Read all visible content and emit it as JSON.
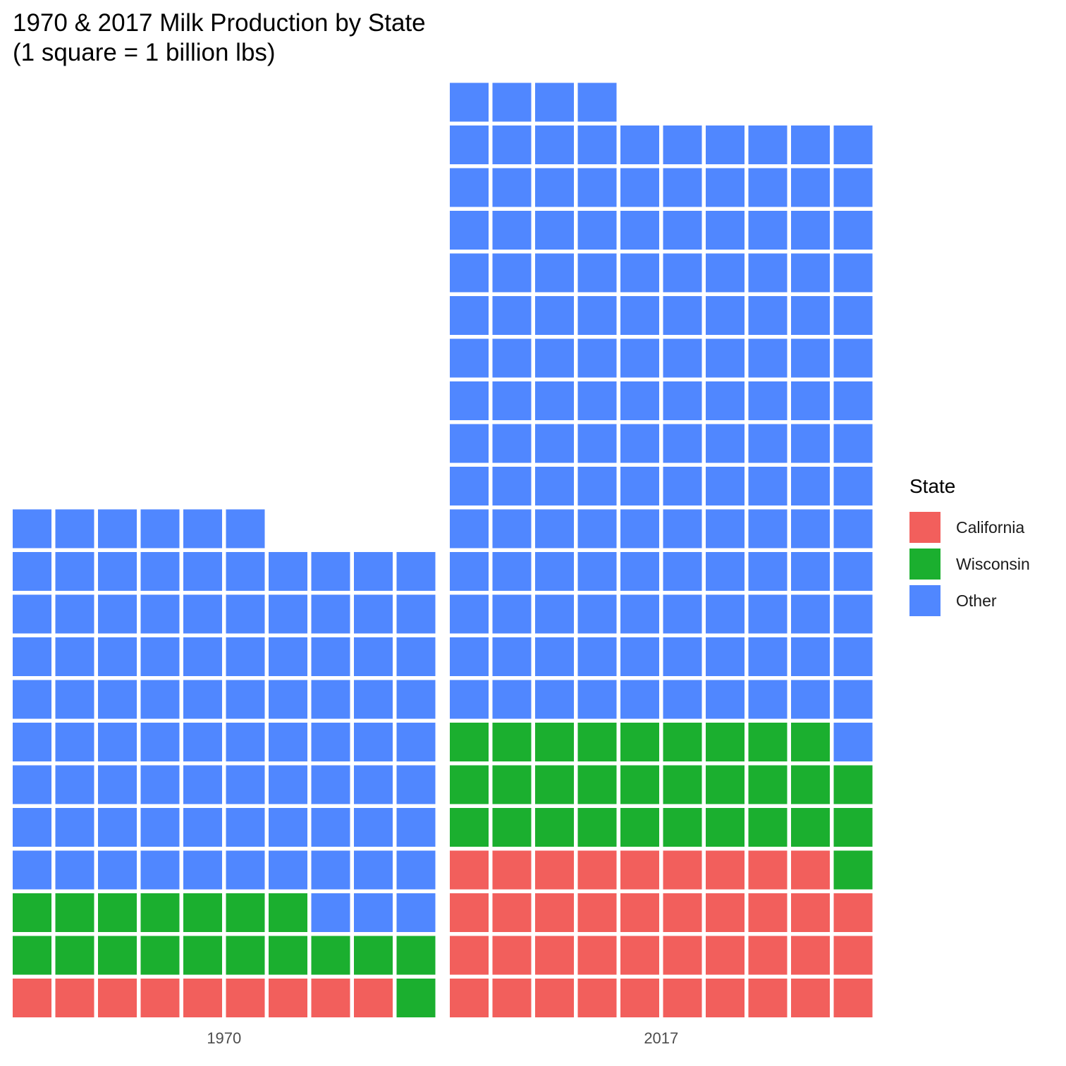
{
  "chart_data": {
    "type": "waffle",
    "title": "1970 & 2017 Milk Production by State\n(1 square = 1 billion lbs)",
    "unit": "1 square = 1 billion lbs",
    "columns_per_panel": 10,
    "panels": [
      {
        "label": "1970",
        "values": {
          "California": 9,
          "Wisconsin": 18,
          "Other": 89
        }
      },
      {
        "label": "2017",
        "values": {
          "California": 39,
          "Wisconsin": 30,
          "Other": 145
        }
      }
    ],
    "legend": {
      "title": "State",
      "position": "right",
      "entries": [
        {
          "name": "California",
          "color": "#F25F5C"
        },
        {
          "name": "Wisconsin",
          "color": "#1BAF2F"
        },
        {
          "name": "Other",
          "color": "#5087FF"
        }
      ]
    },
    "grid": false
  }
}
